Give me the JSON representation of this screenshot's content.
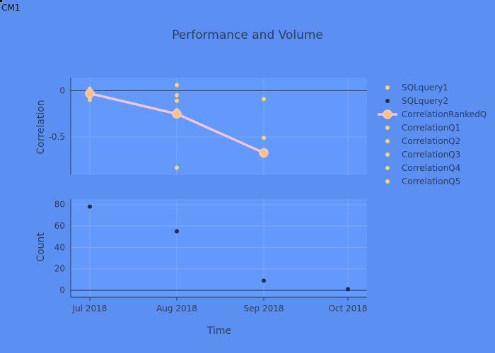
{
  "corner_label": "CM1",
  "chart_data": {
    "type": "scatter",
    "title": "Performance and Volume",
    "xlabel": "Time",
    "x_ticks": [
      "Jul 2018",
      "Aug 2018",
      "Sep 2018",
      "Oct 2018"
    ],
    "colors": {
      "background": "#5b8ff2",
      "plot_bg": "#6399fa",
      "corr_points": "#ffd36b",
      "ranked_line": "#f2c5dc",
      "ranked_marker": "#ffc27a",
      "count_points": "#1f2d4d"
    },
    "panels": [
      {
        "name": "correlation",
        "ylabel": "Correlation",
        "y_ticks": [
          "0",
          "-0.5"
        ],
        "ylim": [
          -0.91,
          0.14
        ],
        "zero_line": true,
        "series": [
          {
            "name": "CorrelationRankedQ",
            "mode": "lines+markers",
            "x": [
              "2018-07",
              "2018-08",
              "2018-09"
            ],
            "y": [
              -0.03,
              -0.25,
              -0.67
            ]
          },
          {
            "name": "CorrelationQ1",
            "mode": "markers",
            "x": [
              "2018-07",
              "2018-08",
              "2018-09"
            ],
            "y": [
              0.02,
              0.06,
              -0.09
            ]
          },
          {
            "name": "CorrelationQ2",
            "mode": "markers",
            "x": [
              "2018-07",
              "2018-08",
              "2018-09"
            ],
            "y": [
              -0.01,
              -0.05,
              -0.51
            ]
          },
          {
            "name": "CorrelationQ3",
            "mode": "markers",
            "x": [
              "2018-07",
              "2018-08",
              "2018-09"
            ],
            "y": [
              -0.04,
              -0.11,
              -0.66
            ]
          },
          {
            "name": "CorrelationQ4",
            "mode": "markers",
            "x": [
              "2018-07",
              "2018-08",
              "2018-09"
            ],
            "y": [
              -0.07,
              -0.21,
              -0.68
            ]
          },
          {
            "name": "CorrelationQ5",
            "mode": "markers",
            "x": [
              "2018-07",
              "2018-08",
              "2018-09"
            ],
            "y": [
              -0.1,
              -0.83,
              -0.69
            ]
          }
        ]
      },
      {
        "name": "count",
        "ylabel": "Count",
        "y_ticks": [
          "80",
          "60",
          "40",
          "20",
          "0"
        ],
        "ylim": [
          -6.5,
          85
        ],
        "zero_line": true,
        "series": [
          {
            "name": "SQLquery2",
            "mode": "markers",
            "x": [
              "2018-07",
              "2018-08",
              "2018-09",
              "2018-10"
            ],
            "y": [
              78,
              55,
              9,
              1
            ]
          }
        ]
      }
    ],
    "legend": {
      "position": "right",
      "entries": [
        "SQLquery1",
        "SQLquery2",
        "CorrelationRankedQ",
        "CorrelationQ1",
        "CorrelationQ2",
        "CorrelationQ3",
        "CorrelationQ4",
        "CorrelationQ5"
      ]
    }
  }
}
